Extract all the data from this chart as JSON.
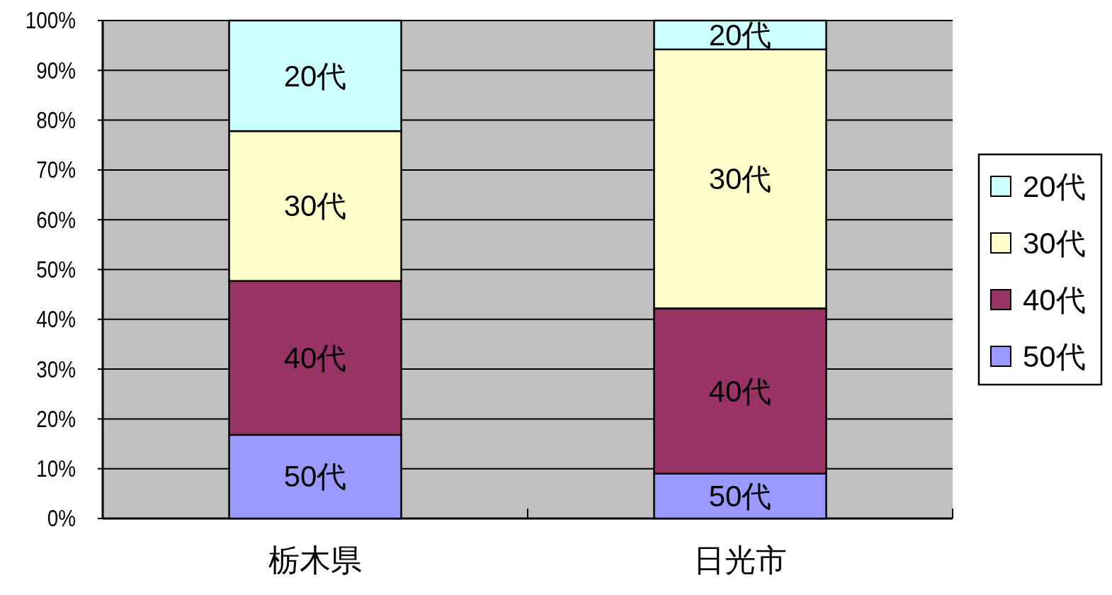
{
  "chart_data": {
    "type": "bar",
    "stacked": true,
    "categories": [
      "栃木県",
      "日光市"
    ],
    "series": [
      {
        "name": "50代",
        "color": "#9999ff",
        "values": [
          16.8,
          9.0
        ]
      },
      {
        "name": "40代",
        "color": "#993366",
        "values": [
          30.9,
          33.2
        ]
      },
      {
        "name": "30代",
        "color": "#ffffcc",
        "values": [
          30.1,
          52.0
        ]
      },
      {
        "name": "20代",
        "color": "#ccffff",
        "values": [
          22.2,
          5.8
        ]
      }
    ],
    "annotations": [
      "50代",
      "40代",
      "30代",
      "20代",
      "50代",
      "40代",
      "30代",
      "20代"
    ],
    "ylim": [
      0,
      100
    ],
    "yticks": [
      {
        "value": 0,
        "label": "0%"
      },
      {
        "value": 10,
        "label": "10%"
      },
      {
        "value": 20,
        "label": "20%"
      },
      {
        "value": 30,
        "label": "30%"
      },
      {
        "value": 40,
        "label": "40%"
      },
      {
        "value": 50,
        "label": "50%"
      },
      {
        "value": 60,
        "label": "60%"
      },
      {
        "value": 70,
        "label": "70%"
      },
      {
        "value": 80,
        "label": "80%"
      },
      {
        "value": 90,
        "label": "90%"
      },
      {
        "value": 100,
        "label": "100%"
      }
    ],
    "grid": "y",
    "legend": "right"
  }
}
